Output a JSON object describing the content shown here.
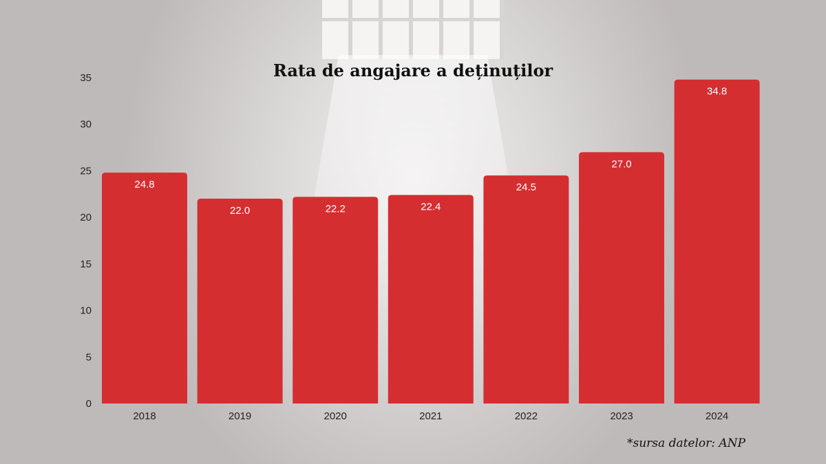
{
  "chart_data": {
    "type": "bar",
    "title": "Rata de angajare a deținuților",
    "categories": [
      "2018",
      "2019",
      "2020",
      "2021",
      "2022",
      "2023",
      "2024"
    ],
    "values": [
      24.8,
      22.0,
      22.2,
      22.4,
      24.5,
      27.0,
      34.8
    ],
    "value_labels": [
      "24.8",
      "22.0",
      "22.2",
      "22.4",
      "24.5",
      "27.0",
      "34.8"
    ],
    "yticks": [
      "0",
      "5",
      "10",
      "15",
      "20",
      "25",
      "30",
      "35"
    ],
    "ylim": [
      0,
      35
    ],
    "xlabel": "",
    "ylabel": "",
    "grid": false,
    "bar_color": "#d42e31",
    "source": "*sursa datelor: ANP"
  }
}
